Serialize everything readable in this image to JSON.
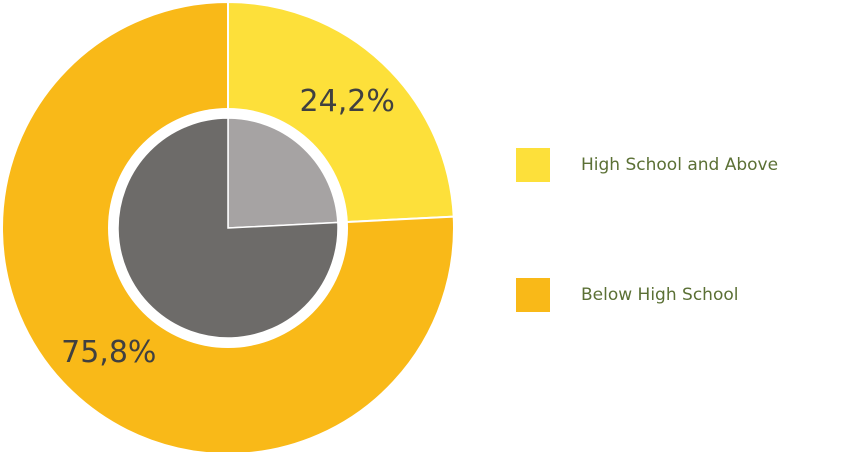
{
  "chart_data": {
    "type": "pie",
    "categories": [
      "High School and Above",
      "Below High School"
    ],
    "values": [
      24.2,
      75.8
    ],
    "value_labels": [
      "24,2%",
      "75,8%"
    ],
    "colors": [
      "#fde03a",
      "#f9b918"
    ],
    "inner_colors": [
      "#a6a3a3",
      "#6d6b69"
    ],
    "legend": "right"
  }
}
